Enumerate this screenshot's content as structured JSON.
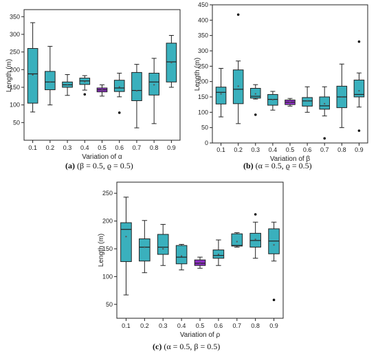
{
  "colors": {
    "box": "#3ab0bd",
    "highlight": "#8d2fc4",
    "stroke": "#222222"
  },
  "chart_data": [
    {
      "type": "box",
      "caption_letter": "(a)",
      "caption_rest": " (β = 0.5, ϱ = 0.5)",
      "xlabel": "Variation of α",
      "ylabel": "Length (m)",
      "ylim": [
        0,
        370
      ],
      "yticks": [
        50,
        100,
        150,
        200,
        250,
        300,
        350
      ],
      "categories": [
        "0.1",
        "0.2",
        "0.3",
        "0.4",
        "0.5",
        "0.6",
        "0.7",
        "0.8",
        "0.9"
      ],
      "highlight_category": "0.5",
      "boxes": [
        {
          "min": 80,
          "q1": 105,
          "median": 188,
          "q3": 260,
          "max": 333,
          "mean": 185,
          "outliers": []
        },
        {
          "min": 100,
          "q1": 143,
          "median": 165,
          "q3": 195,
          "max": 266,
          "mean": 165,
          "outliers": []
        },
        {
          "min": 127,
          "q1": 150,
          "median": 157,
          "q3": 165,
          "max": 186,
          "mean": 157,
          "outliers": []
        },
        {
          "min": 142,
          "q1": 158,
          "median": 168,
          "q3": 176,
          "max": 183,
          "mean": 166,
          "outliers": [
            130
          ]
        },
        {
          "min": 125,
          "q1": 137,
          "median": 143,
          "q3": 148,
          "max": 157,
          "mean": 142,
          "outliers": []
        },
        {
          "min": 123,
          "q1": 138,
          "median": 148,
          "q3": 170,
          "max": 190,
          "mean": 151,
          "outliers": [
            78
          ]
        },
        {
          "min": 35,
          "q1": 112,
          "median": 141,
          "q3": 192,
          "max": 215,
          "mean": 140,
          "outliers": []
        },
        {
          "min": 47,
          "q1": 128,
          "median": 165,
          "q3": 190,
          "max": 232,
          "mean": 157,
          "outliers": []
        },
        {
          "min": 150,
          "q1": 165,
          "median": 222,
          "q3": 275,
          "max": 297,
          "mean": 220,
          "outliers": []
        }
      ]
    },
    {
      "type": "box",
      "caption_letter": "(b)",
      "caption_rest": " (α = 0.5, ϱ = 0.5)",
      "xlabel": "Variation of β",
      "ylabel": "Length (m)",
      "ylim": [
        0,
        450
      ],
      "yticks": [
        0,
        50,
        100,
        150,
        200,
        250,
        300,
        350,
        400,
        450
      ],
      "categories": [
        "0.1",
        "0.2",
        "0.3",
        "0.4",
        "0.5",
        "0.6",
        "0.7",
        "0.8",
        "0.9"
      ],
      "highlight_category": "0.5",
      "boxes": [
        {
          "min": 85,
          "q1": 127,
          "median": 165,
          "q3": 182,
          "max": 243,
          "mean": 160,
          "outliers": []
        },
        {
          "min": 63,
          "q1": 128,
          "median": 175,
          "q3": 238,
          "max": 267,
          "mean": 185,
          "outliers": [
            418
          ]
        },
        {
          "min": 143,
          "q1": 146,
          "median": 152,
          "q3": 178,
          "max": 190,
          "mean": 160,
          "outliers": [
            92
          ]
        },
        {
          "min": 107,
          "q1": 123,
          "median": 142,
          "q3": 158,
          "max": 168,
          "mean": 141,
          "outliers": []
        },
        {
          "min": 120,
          "q1": 125,
          "median": 133,
          "q3": 140,
          "max": 145,
          "mean": 132,
          "outliers": []
        },
        {
          "min": 100,
          "q1": 120,
          "median": 137,
          "q3": 148,
          "max": 183,
          "mean": 137,
          "outliers": []
        },
        {
          "min": 88,
          "q1": 110,
          "median": 121,
          "q3": 150,
          "max": 183,
          "mean": 128,
          "outliers": [
            15
          ]
        },
        {
          "min": 50,
          "q1": 115,
          "median": 150,
          "q3": 185,
          "max": 257,
          "mean": 150,
          "outliers": []
        },
        {
          "min": 117,
          "q1": 150,
          "median": 158,
          "q3": 205,
          "max": 228,
          "mean": 170,
          "outliers": [
            330,
            40
          ]
        }
      ]
    },
    {
      "type": "box",
      "caption_letter": "(c)",
      "caption_rest": " (α = 0.5, β = 0.5)",
      "xlabel": "Variation of ρ",
      "ylabel": "Length (m)",
      "ylim": [
        25,
        270
      ],
      "yticks": [
        50,
        100,
        150,
        200,
        250
      ],
      "categories": [
        "0.1",
        "0.2",
        "0.3",
        "0.4",
        "0.5",
        "0.6",
        "0.7",
        "0.8",
        "0.9"
      ],
      "highlight_category": "0.5",
      "boxes": [
        {
          "min": 67,
          "q1": 127,
          "median": 185,
          "q3": 197,
          "max": 243,
          "mean": 172,
          "outliers": []
        },
        {
          "min": 107,
          "q1": 128,
          "median": 153,
          "q3": 168,
          "max": 201,
          "mean": 153,
          "outliers": []
        },
        {
          "min": 120,
          "q1": 140,
          "median": 153,
          "q3": 176,
          "max": 194,
          "mean": 150,
          "outliers": []
        },
        {
          "min": 112,
          "q1": 123,
          "median": 135,
          "q3": 156,
          "max": 158,
          "mean": 137,
          "outliers": []
        },
        {
          "min": 115,
          "q1": 120,
          "median": 124,
          "q3": 130,
          "max": 135,
          "mean": 125,
          "outliers": []
        },
        {
          "min": 120,
          "q1": 133,
          "median": 138,
          "q3": 148,
          "max": 166,
          "mean": 140,
          "outliers": []
        },
        {
          "min": 153,
          "q1": 155,
          "median": 156,
          "q3": 177,
          "max": 179,
          "mean": 163,
          "outliers": []
        },
        {
          "min": 133,
          "q1": 153,
          "median": 165,
          "q3": 178,
          "max": 198,
          "mean": 167,
          "outliers": [
            212
          ]
        },
        {
          "min": 128,
          "q1": 141,
          "median": 164,
          "q3": 186,
          "max": 198,
          "mean": 157,
          "outliers": [
            58
          ]
        }
      ]
    }
  ]
}
